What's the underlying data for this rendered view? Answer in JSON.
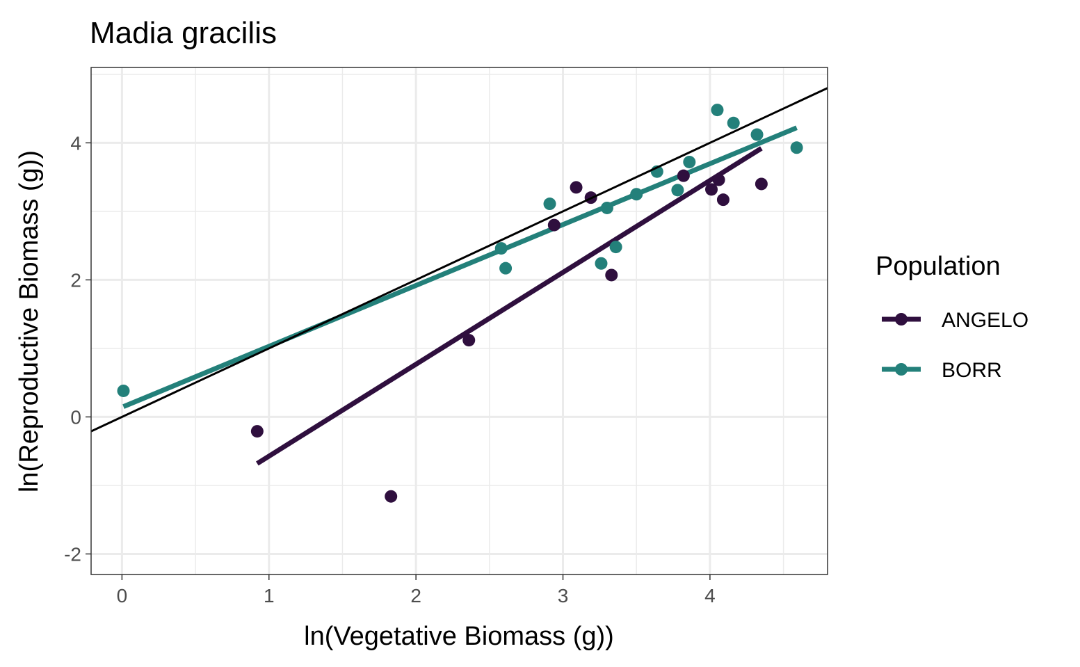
{
  "chart_data": {
    "type": "scatter",
    "title": "Madia gracilis",
    "xlabel": "ln(Vegetative Biomass (g))",
    "ylabel": "ln(Reproductive Biomass (g))",
    "xlim": [
      -0.21,
      4.8
    ],
    "ylim": [
      -2.3,
      5.1
    ],
    "x_ticks": [
      0,
      1,
      2,
      3,
      4
    ],
    "y_ticks": [
      -2,
      0,
      2,
      4
    ],
    "x_tick_labels": [
      "0",
      "1",
      "2",
      "3",
      "4"
    ],
    "y_tick_labels": [
      "-2",
      "0",
      "2",
      "4"
    ],
    "grid": true,
    "legend": {
      "title": "Population",
      "position": "right"
    },
    "reference_line": {
      "slope": 1,
      "intercept": 0,
      "color": "#000000"
    },
    "series": [
      {
        "name": "ANGELO",
        "color": "#2f0f3e",
        "points": [
          [
            0.92,
            -0.21
          ],
          [
            1.83,
            -1.16
          ],
          [
            2.36,
            1.12
          ],
          [
            2.94,
            2.8
          ],
          [
            3.09,
            3.35
          ],
          [
            3.19,
            3.2
          ],
          [
            3.33,
            2.07
          ],
          [
            3.82,
            3.52
          ],
          [
            4.01,
            3.32
          ],
          [
            4.06,
            3.46
          ],
          [
            4.09,
            3.17
          ],
          [
            4.35,
            3.4
          ]
        ],
        "fit": [
          [
            0.92,
            -0.68
          ],
          [
            4.35,
            3.92
          ]
        ]
      },
      {
        "name": "BORR",
        "color": "#23807a",
        "points": [
          [
            0.01,
            0.38
          ],
          [
            2.58,
            2.46
          ],
          [
            2.61,
            2.17
          ],
          [
            2.91,
            3.11
          ],
          [
            3.26,
            2.24
          ],
          [
            3.3,
            3.05
          ],
          [
            3.36,
            2.48
          ],
          [
            3.5,
            3.25
          ],
          [
            3.64,
            3.58
          ],
          [
            3.78,
            3.31
          ],
          [
            3.86,
            3.72
          ],
          [
            4.05,
            4.48
          ],
          [
            4.16,
            4.29
          ],
          [
            4.32,
            4.12
          ],
          [
            4.59,
            3.93
          ]
        ],
        "fit": [
          [
            0.01,
            0.15
          ],
          [
            4.59,
            4.22
          ]
        ]
      }
    ]
  }
}
